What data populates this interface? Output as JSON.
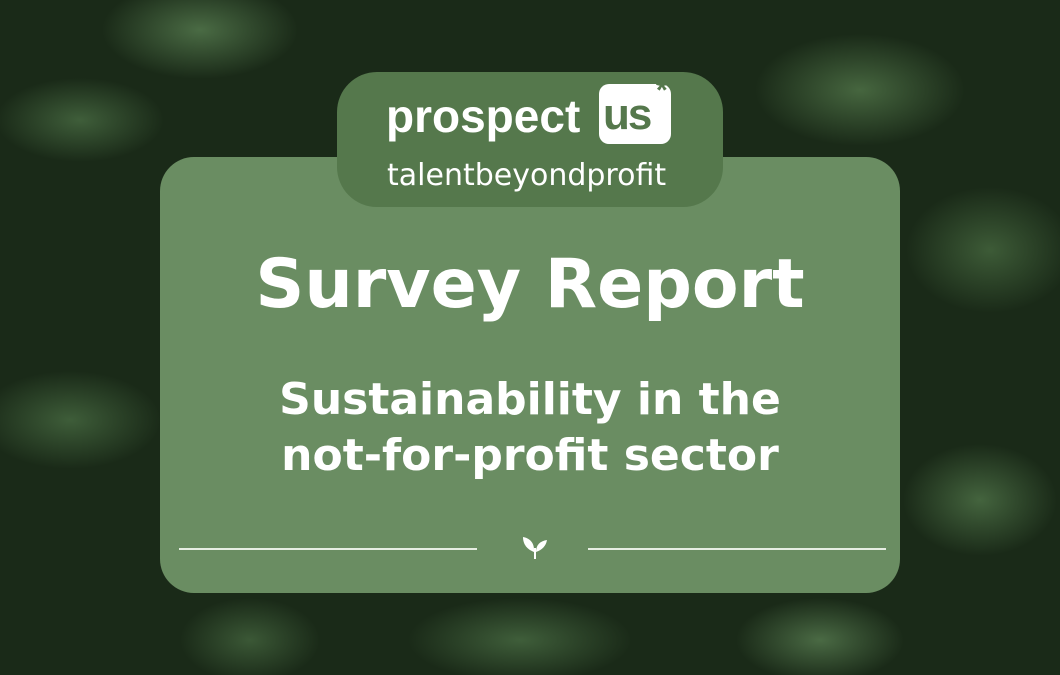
{
  "logo": {
    "main": "prospect",
    "box": "us",
    "star": "*",
    "tagline": "talentbeyondprofit"
  },
  "title": "Survey Report",
  "subtitle_lines": [
    "Sustainability in the",
    "not-for-profit sector"
  ],
  "colors": {
    "card": "#6a8d62",
    "logo_pill": "#55784c",
    "text": "#ffffff"
  },
  "divider_icon": "sprout-icon"
}
